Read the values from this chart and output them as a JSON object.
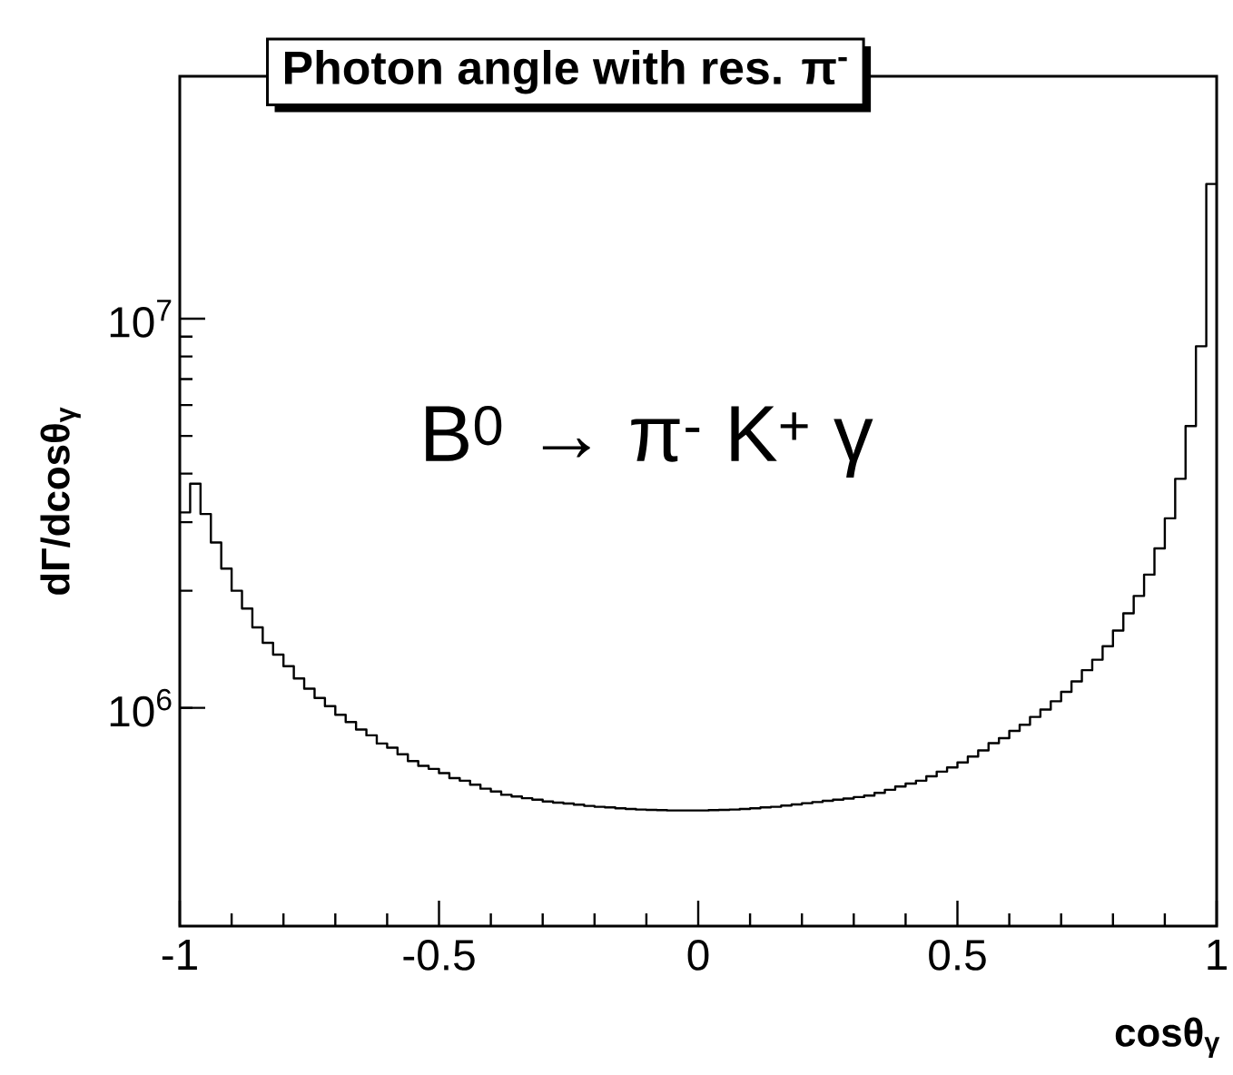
{
  "chart_data": {
    "type": "histogram",
    "title": "Photon angle with res. π$^{-}$",
    "xlabel": "cosθ$_{γ}$",
    "ylabel": "dΓ/dcosθ$_{γ}$",
    "annotations": [
      "B$^{0}$ → π$^{-}$ K$^{+}$ γ"
    ],
    "bins": [
      -1.0,
      -0.98,
      -0.96,
      -0.94,
      -0.92,
      -0.9,
      -0.88,
      -0.86,
      -0.84,
      -0.82,
      -0.8,
      -0.78,
      -0.76,
      -0.74,
      -0.72,
      -0.7,
      -0.68,
      -0.66,
      -0.64,
      -0.62,
      -0.6,
      -0.58,
      -0.56,
      -0.54,
      -0.52,
      -0.5,
      -0.48,
      -0.46,
      -0.44,
      -0.42,
      -0.4,
      -0.38,
      -0.36,
      -0.34,
      -0.32,
      -0.3,
      -0.28,
      -0.26,
      -0.24,
      -0.22,
      -0.2,
      -0.18,
      -0.16,
      -0.14,
      -0.12,
      -0.1,
      -0.08,
      -0.06,
      -0.04,
      -0.02,
      0.0,
      0.02,
      0.04,
      0.06,
      0.08,
      0.1,
      0.12,
      0.14,
      0.16,
      0.18,
      0.2,
      0.22,
      0.24,
      0.26,
      0.28,
      0.3,
      0.32,
      0.34,
      0.36,
      0.38,
      0.4,
      0.42,
      0.44,
      0.46,
      0.48,
      0.5,
      0.52,
      0.54,
      0.56,
      0.58,
      0.6,
      0.62,
      0.64,
      0.66,
      0.68,
      0.7,
      0.72,
      0.74,
      0.76,
      0.78,
      0.8,
      0.82,
      0.84,
      0.86,
      0.88,
      0.9,
      0.92,
      0.94,
      0.96,
      0.98,
      1.0
    ],
    "values": [
      3180000,
      3770000,
      3150000,
      2660000,
      2280000,
      2000000,
      1800000,
      1610000,
      1470000,
      1370000,
      1280000,
      1190000,
      1120000,
      1060000,
      1010000,
      960000,
      920000,
      880000,
      850000,
      810000,
      790000,
      760000,
      730000,
      710000,
      697000,
      680000,
      660000,
      650000,
      635000,
      620000,
      610000,
      598000,
      592000,
      586000,
      581000,
      575000,
      571000,
      568000,
      564000,
      560000,
      557000,
      555000,
      552000,
      550000,
      548000,
      547000,
      546000,
      545000,
      545000,
      545000,
      545000,
      546000,
      547000,
      548000,
      550000,
      552000,
      555000,
      557000,
      561000,
      565000,
      569000,
      573000,
      577000,
      581000,
      585000,
      590000,
      595000,
      605000,
      616000,
      628000,
      639000,
      650000,
      667000,
      686000,
      703000,
      724000,
      750000,
      778000,
      812000,
      836000,
      873000,
      905000,
      948000,
      990000,
      1040000,
      1100000,
      1170000,
      1250000,
      1330000,
      1440000,
      1580000,
      1750000,
      1940000,
      2200000,
      2570000,
      3070000,
      3880000,
      5300000,
      8500000,
      22200000
    ],
    "color": "#000000",
    "log": "y",
    "xlim": [
      -1,
      1
    ],
    "ylim": [
      275000,
      42000000
    ],
    "xticks": [
      -1,
      -0.5,
      0,
      0.5,
      1
    ],
    "yticks": [
      {
        "value": 1000000,
        "label": "10$^{6}$"
      },
      {
        "value": 10000000,
        "label": "10$^{7}$"
      }
    ]
  }
}
